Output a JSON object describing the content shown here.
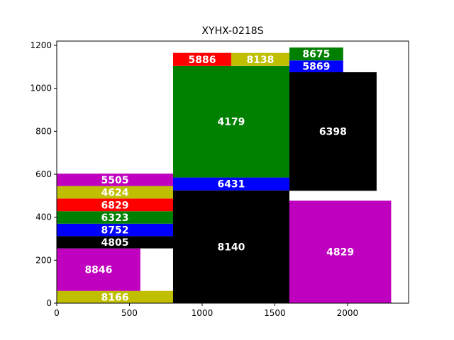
{
  "chart_data": {
    "type": "treemap",
    "title": "XYHX-0218S",
    "xlabel": "",
    "ylabel": "",
    "xlim": [
      0,
      2420
    ],
    "ylim": [
      0,
      1220
    ],
    "grid": false,
    "x_ticks": [
      0,
      500,
      1000,
      1500,
      2000
    ],
    "y_ticks": [
      0,
      200,
      400,
      600,
      800,
      1000,
      1200
    ],
    "rects": [
      {
        "label": "8166",
        "x0": 0,
        "x1": 800,
        "y0": 0,
        "y1": 57,
        "color": "#bfbf00",
        "text_color": "#ffffff"
      },
      {
        "label": "8846",
        "x0": 0,
        "x1": 575,
        "y0": 57,
        "y1": 255,
        "color": "#bf00bf",
        "text_color": "#ffffff"
      },
      {
        "label": "4805",
        "x0": 0,
        "x1": 800,
        "y0": 255,
        "y1": 312,
        "color": "#000000",
        "text_color": "#ffffff"
      },
      {
        "label": "8752",
        "x0": 0,
        "x1": 800,
        "y0": 312,
        "y1": 370,
        "color": "#0000ff",
        "text_color": "#ffffff"
      },
      {
        "label": "6323",
        "x0": 0,
        "x1": 800,
        "y0": 370,
        "y1": 428,
        "color": "#008000",
        "text_color": "#ffffff"
      },
      {
        "label": "6829",
        "x0": 0,
        "x1": 800,
        "y0": 428,
        "y1": 487,
        "color": "#ff0000",
        "text_color": "#ffffff"
      },
      {
        "label": "4624",
        "x0": 0,
        "x1": 800,
        "y0": 487,
        "y1": 545,
        "color": "#bfbf00",
        "text_color": "#ffffff"
      },
      {
        "label": "5505",
        "x0": 0,
        "x1": 800,
        "y0": 545,
        "y1": 603,
        "color": "#bf00bf",
        "text_color": "#ffffff"
      },
      {
        "label": "8140",
        "x0": 800,
        "x1": 1600,
        "y0": 0,
        "y1": 525,
        "color": "#000000",
        "text_color": "#ffffff"
      },
      {
        "label": "6431",
        "x0": 800,
        "x1": 1600,
        "y0": 525,
        "y1": 585,
        "color": "#0000ff",
        "text_color": "#ffffff"
      },
      {
        "label": "4179",
        "x0": 800,
        "x1": 1600,
        "y0": 585,
        "y1": 1105,
        "color": "#008000",
        "text_color": "#ffffff"
      },
      {
        "label": "5886",
        "x0": 800,
        "x1": 1200,
        "y0": 1105,
        "y1": 1165,
        "color": "#ff0000",
        "text_color": "#ffffff"
      },
      {
        "label": "8138",
        "x0": 1200,
        "x1": 1600,
        "y0": 1105,
        "y1": 1165,
        "color": "#bfbf00",
        "text_color": "#ffffff"
      },
      {
        "label": "4829",
        "x0": 1600,
        "x1": 2300,
        "y0": 0,
        "y1": 477,
        "color": "#bf00bf",
        "text_color": "#ffffff"
      },
      {
        "label": "6398",
        "x0": 1600,
        "x1": 2200,
        "y0": 523,
        "y1": 1075,
        "color": "#000000",
        "text_color": "#ffffff"
      },
      {
        "label": "5869",
        "x0": 1600,
        "x1": 1970,
        "y0": 1075,
        "y1": 1130,
        "color": "#0000ff",
        "text_color": "#ffffff"
      },
      {
        "label": "8675",
        "x0": 1600,
        "x1": 1970,
        "y0": 1130,
        "y1": 1190,
        "color": "#008000",
        "text_color": "#ffffff"
      }
    ]
  }
}
